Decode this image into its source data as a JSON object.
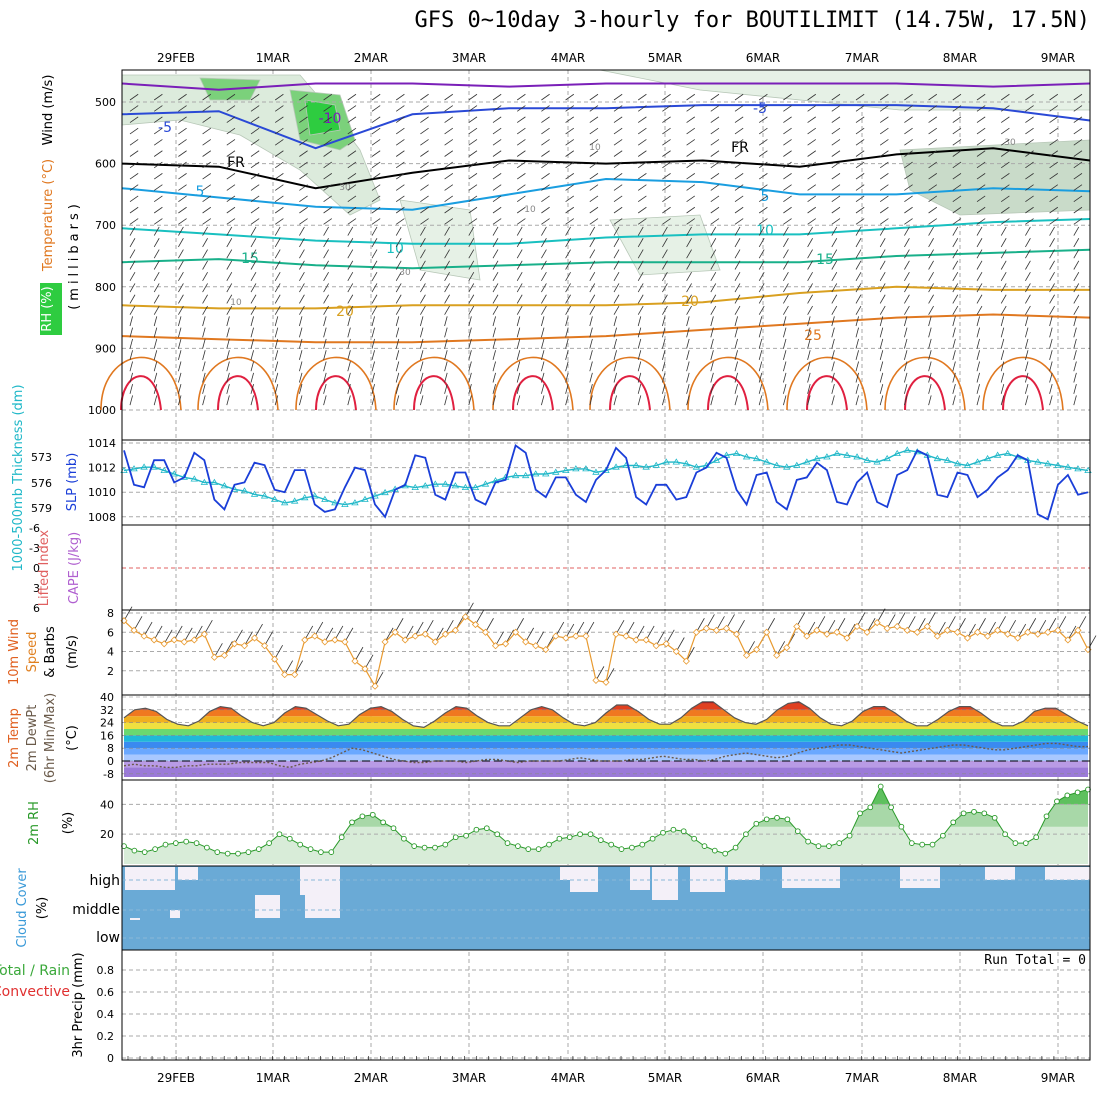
{
  "title": "GFS 0~10day 3-hourly for BOUTILIMIT (14.75W, 17.5N)",
  "dates": [
    "29FEB",
    "1MAR",
    "2MAR",
    "3MAR",
    "4MAR",
    "5MAR",
    "6MAR",
    "7MAR",
    "8MAR",
    "9MAR"
  ],
  "colors": {
    "temp_cold": "#7a1fb8",
    "temp_m5": "#2a49d6",
    "temp_5": "#1a9ee0",
    "temp_10": "#19c0c0",
    "temp_15": "#19b08a",
    "temp_20": "#d9a020",
    "temp_25": "#e07820",
    "temp_30": "#e02040",
    "freezing": "#000000",
    "rh_green": "#2ecc40",
    "slp": "#1a3ed8",
    "thickness": "#20b8c8",
    "wind10m": "#e89a30",
    "rh2m": "#2a9a2a",
    "cloud": "#6aaad6",
    "lifted": "#e06060"
  },
  "chart_data": [
    {
      "type": "area",
      "panel": "upper_air",
      "ylabel": "(millibars)",
      "ylabel_vertical": "millibars",
      "side_labels": [
        "RH (%)",
        "Temperature (°C)",
        "Wind (m/s)"
      ],
      "ylim": [
        1000,
        450
      ],
      "yticks": [
        500,
        600,
        700,
        800,
        900,
        1000
      ],
      "contour_labels": [
        "-10",
        "-5",
        "-5",
        "FR",
        "FR",
        "5",
        "5",
        "10",
        "10",
        "15",
        "15",
        "20",
        "20",
        "25",
        "10",
        "10",
        "30",
        "30",
        "30",
        "10"
      ],
      "isotherms": [
        {
          "name": "-10",
          "level_mb": [
            470,
            480,
            470,
            470,
            475,
            470,
            470,
            470,
            470,
            475,
            470
          ]
        },
        {
          "name": "-5",
          "level_mb": [
            520,
            515,
            575,
            520,
            510,
            510,
            505,
            505,
            505,
            510,
            530
          ]
        },
        {
          "name": "FR",
          "level_mb": [
            600,
            605,
            640,
            615,
            595,
            600,
            595,
            605,
            585,
            575,
            595
          ]
        },
        {
          "name": "5",
          "level_mb": [
            640,
            655,
            670,
            675,
            650,
            625,
            630,
            650,
            650,
            640,
            645
          ]
        },
        {
          "name": "10",
          "level_mb": [
            705,
            715,
            725,
            730,
            730,
            720,
            715,
            715,
            705,
            695,
            690
          ]
        },
        {
          "name": "15",
          "level_mb": [
            760,
            755,
            765,
            770,
            765,
            760,
            760,
            760,
            750,
            745,
            740
          ]
        },
        {
          "name": "20",
          "level_mb": [
            830,
            835,
            835,
            830,
            830,
            830,
            825,
            810,
            800,
            805,
            805
          ]
        },
        {
          "name": "25",
          "level_mb": [
            880,
            885,
            890,
            890,
            885,
            880,
            870,
            860,
            850,
            845,
            850
          ]
        }
      ]
    },
    {
      "type": "line",
      "panel": "slp_thickness",
      "ylabel": "SLP (mb)",
      "ylabel2": "1000-500mb Thickness (dm)",
      "ylim": [
        1007,
        1014
      ],
      "yticks": [
        1008,
        1010,
        1012,
        1014
      ],
      "y2ticks": [
        573,
        576,
        579
      ],
      "series": [
        {
          "name": "SLP (mb)",
          "values": [
            1013.4,
            1010.6,
            1010.4,
            1012.6,
            1012.6,
            1010.8,
            1011.2,
            1013.2,
            1012.6,
            1009.4,
            1008.6,
            1010.6,
            1010.8,
            1012.4,
            1012.2,
            1010.2,
            1010.0,
            1011.8,
            1011.8,
            1009.0,
            1008.4,
            1008.6,
            1010.4,
            1012.0,
            1011.8,
            1009.0,
            1008.0,
            1010.2,
            1010.6,
            1013.0,
            1012.8,
            1009.8,
            1009.4,
            1011.6,
            1011.6,
            1009.4,
            1009.0,
            1010.8,
            1011.0,
            1013.8,
            1013.2,
            1010.2,
            1009.6,
            1011.2,
            1011.2,
            1009.8,
            1009.2,
            1011.0,
            1011.8,
            1013.6,
            1012.8,
            1009.6,
            1009.0,
            1010.6,
            1010.6,
            1009.4,
            1009.6,
            1011.6,
            1012.0,
            1013.2,
            1012.8,
            1010.2,
            1009.0,
            1011.4,
            1011.6,
            1009.2,
            1008.6,
            1011.0,
            1011.2,
            1012.4,
            1011.8,
            1009.2,
            1009.0,
            1010.8,
            1011.6,
            1009.2,
            1008.8,
            1011.4,
            1011.8,
            1013.4,
            1013.0,
            1009.8,
            1009.6,
            1011.6,
            1011.4,
            1009.6,
            1010.2,
            1011.2,
            1011.8,
            1013.0,
            1012.6,
            1008.2,
            1007.8,
            1010.6,
            1011.4,
            1009.8,
            1010.0
          ]
        },
        {
          "name": "1000-500mb Thickness (dm)",
          "values": [
            577.4,
            577.6,
            577.8,
            577.8,
            577.4,
            577.0,
            576.6,
            576.4,
            576.0,
            576.0,
            575.6,
            575.2,
            575.0,
            574.6,
            574.4,
            574.0,
            573.6,
            573.8,
            574.2,
            574.4,
            574.0,
            573.6,
            573.4,
            573.6,
            574.0,
            574.4,
            574.8,
            575.2,
            575.6,
            575.4,
            575.6,
            575.8,
            575.8,
            575.6,
            575.4,
            575.4,
            575.8,
            576.2,
            576.6,
            576.8,
            576.8,
            577.0,
            577.0,
            577.2,
            577.4,
            577.6,
            577.6,
            577.2,
            577.4,
            577.8,
            578.0,
            578.0,
            577.8,
            578.0,
            578.4,
            578.4,
            578.2,
            577.8,
            578.0,
            578.6,
            579.2,
            579.4,
            579.0,
            578.8,
            578.4,
            578.0,
            577.8,
            578.0,
            578.4,
            578.8,
            579.0,
            579.4,
            579.2,
            579.0,
            578.6,
            578.4,
            578.8,
            579.4,
            579.8,
            579.6,
            579.2,
            578.8,
            578.6,
            578.2,
            578.0,
            578.4,
            578.8,
            579.2,
            579.4,
            579.0,
            578.6,
            578.4,
            578.2,
            578.0,
            577.8,
            577.6,
            577.4
          ]
        }
      ]
    },
    {
      "type": "line",
      "panel": "stability",
      "ylabel": "Lifted Index",
      "ylabel2": "CAPE (J/kg)",
      "ylim": [
        -6,
        6
      ],
      "yticks_labels": [
        "-6",
        "-3",
        "0",
        "3",
        "6"
      ],
      "series": [
        {
          "name": "Lifted Index",
          "values": []
        }
      ]
    },
    {
      "type": "line",
      "panel": "wind10m",
      "ylabel": "10m Wind Speed & Barbs",
      "ylabel_unit": "(m/s)",
      "ylim": [
        0,
        8
      ],
      "yticks": [
        2,
        4,
        6,
        8
      ],
      "series": [
        {
          "name": "10m Wind Speed",
          "values": [
            7.2,
            6.2,
            5.6,
            5.2,
            4.8,
            5.2,
            5.0,
            5.2,
            5.8,
            3.4,
            3.6,
            4.8,
            4.6,
            5.4,
            4.6,
            3.2,
            1.6,
            1.6,
            5.2,
            5.6,
            5.0,
            5.2,
            5.0,
            3.0,
            2.2,
            0.4,
            5.0,
            6.0,
            5.2,
            5.6,
            5.8,
            5.0,
            5.8,
            6.2,
            7.6,
            6.8,
            6.0,
            4.6,
            4.8,
            6.0,
            5.0,
            4.6,
            4.2,
            5.6,
            5.4,
            5.6,
            5.6,
            1.0,
            0.8,
            5.8,
            5.6,
            5.2,
            5.2,
            4.6,
            4.8,
            4.0,
            3.0,
            6.0,
            6.4,
            6.2,
            6.4,
            5.8,
            3.6,
            4.2,
            6.0,
            3.6,
            4.4,
            6.6,
            5.6,
            6.2,
            5.8,
            6.0,
            5.4,
            6.6,
            6.0,
            7.0,
            6.4,
            6.6,
            6.2,
            6.0,
            6.6,
            5.6,
            6.2,
            6.0,
            5.4,
            6.0,
            5.6,
            6.2,
            5.8,
            5.4,
            6.0,
            5.8,
            6.0,
            6.2,
            5.2,
            6.2,
            4.2
          ]
        }
      ]
    },
    {
      "type": "area",
      "panel": "temp2m",
      "ylabel": "2m Temp",
      "ylabel2": "2m DewPt",
      "ylabel3": "(6hr Min/Max)",
      "ylabel_unit": "(°C)",
      "ylim": [
        -10,
        40
      ],
      "yticks": [
        -8,
        0,
        8,
        16,
        24,
        32,
        40
      ],
      "series": [
        {
          "name": "2m Temp",
          "values": [
            27,
            32,
            33,
            31,
            26,
            23,
            22,
            25,
            31,
            34,
            33,
            28,
            24,
            22,
            24,
            30,
            34,
            33,
            29,
            25,
            22,
            23,
            29,
            33,
            34,
            31,
            26,
            22,
            21,
            25,
            30,
            34,
            33,
            28,
            24,
            22,
            22,
            27,
            32,
            34,
            32,
            27,
            23,
            22,
            24,
            30,
            35,
            35,
            31,
            26,
            23,
            23,
            27,
            33,
            37,
            37,
            32,
            27,
            24,
            23,
            26,
            32,
            36,
            37,
            33,
            27,
            23,
            22,
            25,
            31,
            34,
            34,
            30,
            25,
            22,
            22,
            26,
            31,
            34,
            34,
            30,
            25,
            22,
            22,
            25,
            31,
            33,
            33,
            29,
            25,
            22
          ]
        },
        {
          "name": "2m DewPt",
          "values": [
            -3,
            -2,
            -3,
            -3,
            -4,
            -4,
            -3,
            -3,
            -2,
            -2,
            -2,
            -1,
            -1,
            -1,
            -1,
            -3,
            -4,
            -2,
            -1,
            0,
            2,
            5,
            8,
            7,
            5,
            3,
            1,
            0,
            -1,
            -1,
            0,
            0,
            0,
            -1,
            0,
            1,
            1,
            0,
            -1,
            0,
            0,
            0,
            0,
            1,
            2,
            1,
            0,
            0,
            0,
            1,
            1,
            2,
            3,
            2,
            1,
            1,
            0,
            1,
            3,
            4,
            5,
            4,
            3,
            2,
            3,
            5,
            7,
            8,
            9,
            10,
            10,
            9,
            8,
            7,
            6,
            5,
            6,
            7,
            8,
            9,
            10,
            10,
            9,
            8,
            7,
            7,
            8,
            9,
            10,
            11,
            11,
            10,
            9,
            9
          ]
        }
      ]
    },
    {
      "type": "area",
      "panel": "rh2m",
      "ylabel": "2m RH",
      "ylabel_unit": "(%)",
      "ylim": [
        0,
        55
      ],
      "yticks": [
        20,
        40
      ],
      "series": [
        {
          "name": "2m RH",
          "values": [
            12,
            9,
            8,
            10,
            13,
            14,
            15,
            14,
            11,
            8,
            7,
            7,
            8,
            10,
            14,
            20,
            17,
            13,
            10,
            8,
            8,
            18,
            28,
            32,
            33,
            28,
            24,
            17,
            12,
            11,
            11,
            13,
            18,
            19,
            23,
            24,
            20,
            14,
            12,
            10,
            10,
            13,
            17,
            18,
            20,
            20,
            16,
            13,
            10,
            11,
            13,
            17,
            21,
            23,
            22,
            17,
            12,
            9,
            7,
            11,
            20,
            27,
            30,
            31,
            30,
            22,
            15,
            12,
            12,
            14,
            19,
            34,
            38,
            52,
            38,
            25,
            14,
            13,
            13,
            19,
            28,
            34,
            35,
            34,
            31,
            20,
            14,
            14,
            18,
            32,
            42,
            46,
            48,
            50
          ]
        }
      ]
    },
    {
      "type": "bar",
      "panel": "cloud",
      "ylabel": "Cloud Cover",
      "ylabel_unit": "(%)",
      "levels": [
        "high",
        "middle",
        "low"
      ]
    },
    {
      "type": "bar",
      "panel": "precip",
      "ylabel": "3hr Precip (mm)",
      "side_labels": [
        "Total / Rain",
        "Convective"
      ],
      "ylim": [
        0,
        1
      ],
      "yticks": [
        0,
        0.2,
        0.4,
        0.6,
        0.8
      ],
      "annotation": "Run Total = 0",
      "values": []
    }
  ]
}
